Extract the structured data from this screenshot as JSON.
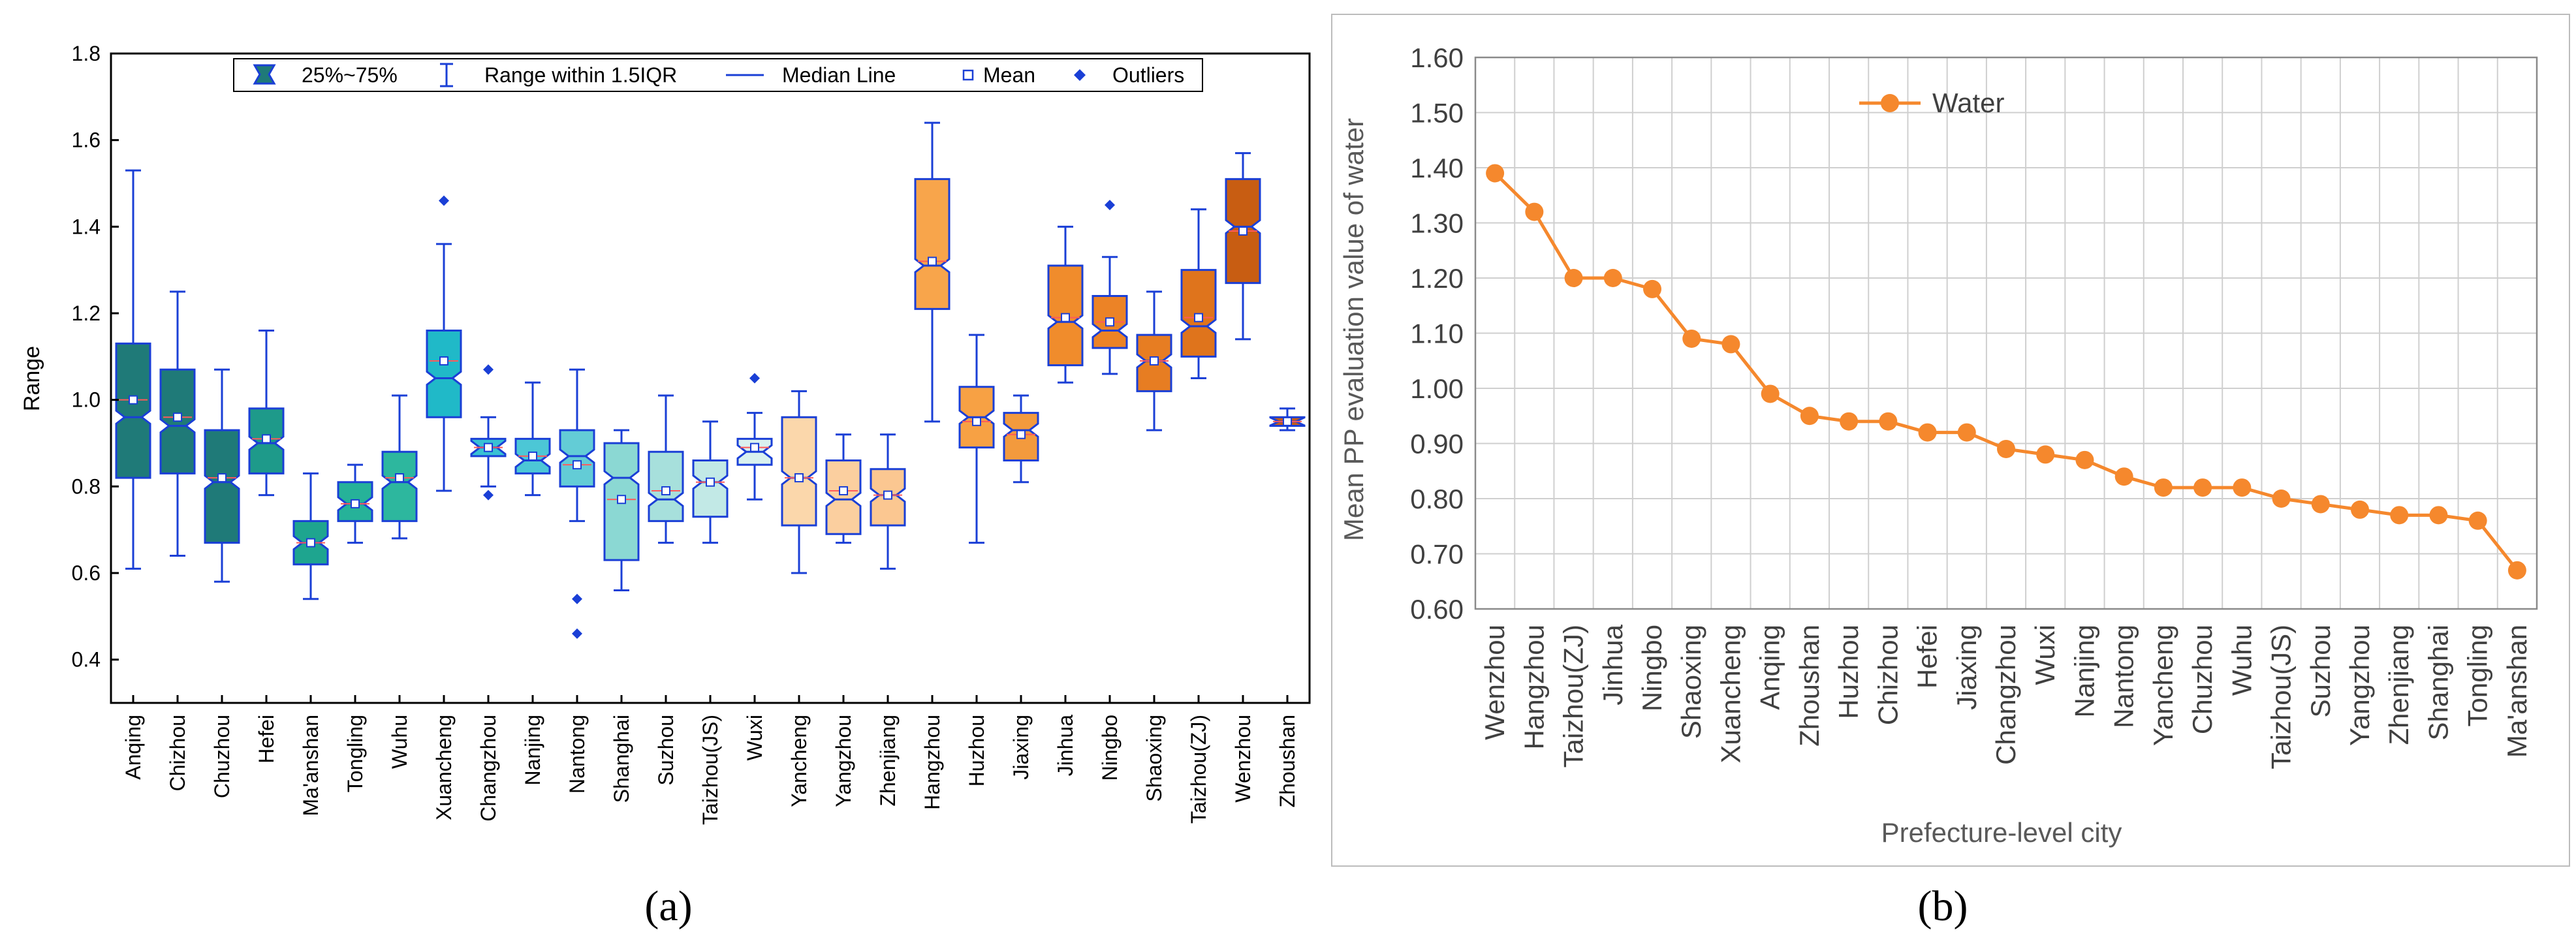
{
  "chart_data": [
    {
      "type": "box",
      "panel_label": "(a)",
      "ylabel": "Range",
      "ylim": [
        0.3,
        1.8
      ],
      "yticks": [
        0.4,
        0.6,
        0.8,
        1.0,
        1.2,
        1.4,
        1.6,
        1.8
      ],
      "ytick_labels": [
        "0.4",
        "0.6",
        "0.8",
        "1.0",
        "1.2",
        "1.4",
        "1.6",
        "1.8"
      ],
      "legend": [
        {
          "key": "box",
          "label": "25%~75%"
        },
        {
          "key": "whisker",
          "label": "Range within 1.5IQR"
        },
        {
          "key": "median",
          "label": "Median Line"
        },
        {
          "key": "mean",
          "label": "Mean"
        },
        {
          "key": "outlier",
          "label": "Outliers"
        }
      ],
      "categories": [
        "Anqing",
        "Chizhou",
        "Chuzhou",
        "Hefei",
        "Ma'anshan",
        "Tongling",
        "Wuhu",
        "Xuancheng",
        "Changzhou",
        "Nanjing",
        "Nantong",
        "Shanghai",
        "Suzhou",
        "Taizhou(JS)",
        "Wuxi",
        "Yancheng",
        "Yangzhou",
        "Zhenjiang",
        "Hangzhou",
        "Huzhou",
        "Jiaxing",
        "Jinhua",
        "Ningbo",
        "Shaoxing",
        "Taizhou(ZJ)",
        "Wenzhou",
        "Zhoushan"
      ],
      "boxes": [
        {
          "min": 0.61,
          "q1": 0.82,
          "median": 0.96,
          "q3": 1.13,
          "max": 1.53,
          "mean": 1.0,
          "outliers": [],
          "color": "#1f7a78"
        },
        {
          "min": 0.64,
          "q1": 0.83,
          "median": 0.94,
          "q3": 1.07,
          "max": 1.25,
          "mean": 0.96,
          "outliers": [],
          "color": "#1f7a78"
        },
        {
          "min": 0.58,
          "q1": 0.67,
          "median": 0.81,
          "q3": 0.93,
          "max": 1.07,
          "mean": 0.82,
          "outliers": [],
          "color": "#1f7a78"
        },
        {
          "min": 0.78,
          "q1": 0.83,
          "median": 0.9,
          "q3": 0.98,
          "max": 1.16,
          "mean": 0.91,
          "outliers": [],
          "color": "#1e9a8a"
        },
        {
          "min": 0.54,
          "q1": 0.62,
          "median": 0.67,
          "q3": 0.72,
          "max": 0.83,
          "mean": 0.67,
          "outliers": [],
          "color": "#1ea58f"
        },
        {
          "min": 0.67,
          "q1": 0.72,
          "median": 0.76,
          "q3": 0.81,
          "max": 0.85,
          "mean": 0.76,
          "outliers": [],
          "color": "#26b299"
        },
        {
          "min": 0.68,
          "q1": 0.72,
          "median": 0.81,
          "q3": 0.88,
          "max": 1.01,
          "mean": 0.82,
          "outliers": [],
          "color": "#2db79e"
        },
        {
          "min": 0.79,
          "q1": 0.96,
          "median": 1.05,
          "q3": 1.16,
          "max": 1.36,
          "mean": 1.09,
          "outliers": [
            1.46
          ],
          "color": "#20b9c8"
        },
        {
          "min": 0.8,
          "q1": 0.87,
          "median": 0.89,
          "q3": 0.91,
          "max": 0.96,
          "mean": 0.89,
          "outliers": [
            0.78,
            1.07
          ],
          "color": "#39c1d4"
        },
        {
          "min": 0.78,
          "q1": 0.83,
          "median": 0.86,
          "q3": 0.91,
          "max": 1.04,
          "mean": 0.87,
          "outliers": [],
          "color": "#4cc7d6"
        },
        {
          "min": 0.72,
          "q1": 0.8,
          "median": 0.87,
          "q3": 0.93,
          "max": 1.07,
          "mean": 0.85,
          "outliers": [
            0.54,
            0.46
          ],
          "color": "#63ccd6"
        },
        {
          "min": 0.56,
          "q1": 0.63,
          "median": 0.82,
          "q3": 0.9,
          "max": 0.93,
          "mean": 0.77,
          "outliers": [],
          "color": "#8bd8d3"
        },
        {
          "min": 0.67,
          "q1": 0.72,
          "median": 0.77,
          "q3": 0.88,
          "max": 1.01,
          "mean": 0.79,
          "outliers": [],
          "color": "#a7e0dc"
        },
        {
          "min": 0.67,
          "q1": 0.73,
          "median": 0.81,
          "q3": 0.86,
          "max": 0.95,
          "mean": 0.81,
          "outliers": [],
          "color": "#c2e9e6"
        },
        {
          "min": 0.77,
          "q1": 0.85,
          "median": 0.88,
          "q3": 0.91,
          "max": 0.97,
          "mean": 0.89,
          "outliers": [
            1.05
          ],
          "color": "#d9f1ef"
        },
        {
          "min": 0.6,
          "q1": 0.71,
          "median": 0.82,
          "q3": 0.96,
          "max": 1.02,
          "mean": 0.82,
          "outliers": [],
          "color": "#fbd7ab"
        },
        {
          "min": 0.67,
          "q1": 0.69,
          "median": 0.77,
          "q3": 0.86,
          "max": 0.92,
          "mean": 0.79,
          "outliers": [],
          "color": "#fbcf9f"
        },
        {
          "min": 0.61,
          "q1": 0.71,
          "median": 0.78,
          "q3": 0.84,
          "max": 0.92,
          "mean": 0.78,
          "outliers": [],
          "color": "#fbc791"
        },
        {
          "min": 0.95,
          "q1": 1.21,
          "median": 1.31,
          "q3": 1.51,
          "max": 1.64,
          "mean": 1.32,
          "outliers": [],
          "color": "#f8a54b"
        },
        {
          "min": 0.67,
          "q1": 0.89,
          "median": 0.96,
          "q3": 1.03,
          "max": 1.15,
          "mean": 0.95,
          "outliers": [],
          "color": "#f7a144"
        },
        {
          "min": 0.81,
          "q1": 0.86,
          "median": 0.93,
          "q3": 0.97,
          "max": 1.01,
          "mean": 0.92,
          "outliers": [],
          "color": "#f39a3d"
        },
        {
          "min": 1.04,
          "q1": 1.08,
          "median": 1.18,
          "q3": 1.31,
          "max": 1.4,
          "mean": 1.19,
          "outliers": [],
          "color": "#f08c2c"
        },
        {
          "min": 1.06,
          "q1": 1.12,
          "median": 1.16,
          "q3": 1.24,
          "max": 1.33,
          "mean": 1.18,
          "outliers": [
            1.45
          ],
          "color": "#ec8326"
        },
        {
          "min": 0.93,
          "q1": 1.02,
          "median": 1.09,
          "q3": 1.15,
          "max": 1.25,
          "mean": 1.09,
          "outliers": [],
          "color": "#e77d22"
        },
        {
          "min": 1.05,
          "q1": 1.1,
          "median": 1.17,
          "q3": 1.3,
          "max": 1.44,
          "mean": 1.19,
          "outliers": [],
          "color": "#df741c"
        },
        {
          "min": 1.14,
          "q1": 1.27,
          "median": 1.4,
          "q3": 1.51,
          "max": 1.57,
          "mean": 1.39,
          "outliers": [],
          "color": "#c85d12"
        },
        {
          "min": 0.93,
          "q1": 0.94,
          "median": 0.95,
          "q3": 0.96,
          "max": 0.98,
          "mean": 0.95,
          "outliers": [],
          "color": "#c85d12"
        }
      ]
    },
    {
      "type": "line",
      "panel_label": "(b)",
      "ylabel": "Mean PP evaluation value of water",
      "xlabel": "Prefecture-level city",
      "ylim": [
        0.6,
        1.6
      ],
      "yticks": [
        0.6,
        0.7,
        0.8,
        0.9,
        1.0,
        1.1,
        1.2,
        1.3,
        1.4,
        1.5,
        1.6
      ],
      "ytick_labels": [
        "0.60",
        "0.70",
        "0.80",
        "0.90",
        "1.00",
        "1.10",
        "1.20",
        "1.30",
        "1.40",
        "1.50",
        "1.60"
      ],
      "color": "#f5882d",
      "series": [
        {
          "name": "Water",
          "categories": [
            "Wenzhou",
            "Hangzhou",
            "Taizhou(ZJ)",
            "Jinhua",
            "Ningbo",
            "Shaoxing",
            "Xuancheng",
            "Anqing",
            "Zhoushan",
            "Huzhou",
            "Chizhou",
            "Hefei",
            "Jiaxing",
            "Changzhou",
            "Wuxi",
            "Nanjing",
            "Nantong",
            "Yancheng",
            "Chuzhou",
            "Wuhu",
            "Taizhou(JS)",
            "Suzhou",
            "Yangzhou",
            "Zhenjiang",
            "Shanghai",
            "Tongling",
            "Ma'anshan"
          ],
          "values": [
            1.39,
            1.32,
            1.2,
            1.2,
            1.18,
            1.09,
            1.08,
            0.99,
            0.95,
            0.94,
            0.94,
            0.92,
            0.92,
            0.89,
            0.88,
            0.87,
            0.84,
            0.82,
            0.82,
            0.82,
            0.8,
            0.79,
            0.78,
            0.77,
            0.77,
            0.76,
            0.67
          ]
        }
      ]
    }
  ]
}
